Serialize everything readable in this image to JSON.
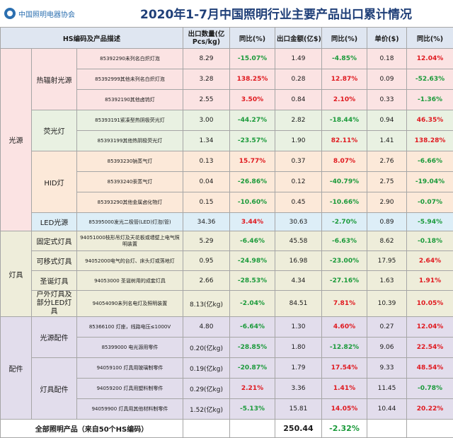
{
  "header": {
    "logo_text": "中国照明电器协会",
    "title": "2020年1-7月中国照明行业主要产品出口累计情况"
  },
  "columns": {
    "hs_desc": "HS编码及产品描述",
    "qty": "出口数量(亿Pcs/kg)",
    "qty_yoy": "同比(%)",
    "amt": "出口金额(亿$)",
    "amt_yoy": "同比(%)",
    "price": "单价($)",
    "price_yoy": "同比(%)"
  },
  "categories": {
    "light_source": "光源",
    "luminaire": "灯具",
    "accessory": "配件"
  },
  "subcats": {
    "incandescent": "热辐射光源",
    "fluorescent": "荧光灯",
    "hid": "HID灯",
    "led": "LED光源",
    "fixed": "固定式灯具",
    "portable": "可移式灯具",
    "christmas": "圣诞灯具",
    "outdoor": "户外灯具及部分LED灯具",
    "ls_parts": "光源配件",
    "lum_parts": "灯具配件"
  },
  "rows": [
    {
      "hs": "85392290未列名白炽灯泡",
      "qty": "8.29",
      "qty_yoy": "-15.07%",
      "amt": "1.49",
      "amt_yoy": "-4.85%",
      "price": "0.18",
      "price_yoy": "12.04%"
    },
    {
      "hs": "85392999其他未列名白炽灯泡",
      "qty": "3.28",
      "qty_yoy": "138.25%",
      "amt": "0.28",
      "amt_yoy": "12.87%",
      "price": "0.09",
      "price_yoy": "-52.63%"
    },
    {
      "hs": "85392190其他卤钨灯",
      "qty": "2.55",
      "qty_yoy": "3.50%",
      "amt": "0.84",
      "amt_yoy": "2.10%",
      "price": "0.33",
      "price_yoy": "-1.36%"
    },
    {
      "hs": "85393191紧凑型热阴极荧光灯",
      "qty": "3.00",
      "qty_yoy": "-44.27%",
      "amt": "2.82",
      "amt_yoy": "-18.44%",
      "price": "0.94",
      "price_yoy": "46.35%"
    },
    {
      "hs": "85393199其他热阴极荧光灯",
      "qty": "1.34",
      "qty_yoy": "-23.57%",
      "amt": "1.90",
      "amt_yoy": "82.11%",
      "price": "1.41",
      "price_yoy": "138.28%"
    },
    {
      "hs": "85393230钠蒸气灯",
      "qty": "0.13",
      "qty_yoy": "15.77%",
      "amt": "0.37",
      "amt_yoy": "8.07%",
      "price": "2.76",
      "price_yoy": "-6.66%"
    },
    {
      "hs": "85393240汞蒸气灯",
      "qty": "0.04",
      "qty_yoy": "-26.86%",
      "amt": "0.12",
      "amt_yoy": "-40.79%",
      "price": "2.75",
      "price_yoy": "-19.04%"
    },
    {
      "hs": "85393290其他金属卤化物灯",
      "qty": "0.15",
      "qty_yoy": "-10.60%",
      "amt": "0.45",
      "amt_yoy": "-10.66%",
      "price": "2.90",
      "price_yoy": "-0.07%"
    },
    {
      "hs": "85395000发光二极管(LED)灯泡(管)",
      "qty": "34.36",
      "qty_yoy": "3.44%",
      "amt": "30.63",
      "amt_yoy": "-2.70%",
      "price": "0.89",
      "price_yoy": "-5.94%"
    },
    {
      "hs": "94051000枝形吊灯及天花板或墙壁上电气照明装置",
      "qty": "5.29",
      "qty_yoy": "-6.46%",
      "amt": "45.58",
      "amt_yoy": "-6.63%",
      "price": "8.62",
      "price_yoy": "-0.18%"
    },
    {
      "hs": "94052000电气的台灯、床头灯或落地灯",
      "qty": "0.95",
      "qty_yoy": "-24.98%",
      "amt": "16.98",
      "amt_yoy": "-23.00%",
      "price": "17.95",
      "price_yoy": "2.64%"
    },
    {
      "hs": "94053000 圣诞树用的成套灯具",
      "qty": "2.66",
      "qty_yoy": "-28.53%",
      "amt": "4.34",
      "amt_yoy": "-27.16%",
      "price": "1.63",
      "price_yoy": "1.91%"
    },
    {
      "hs": "94054090未列名电灯及照明装置",
      "qty": "8.13(亿kg)",
      "qty_yoy": "-2.04%",
      "amt": "84.51",
      "amt_yoy": "7.81%",
      "price": "10.39",
      "price_yoy": "10.05%"
    },
    {
      "hs": "85366100 灯座，线路电压≤1000V",
      "qty": "4.80",
      "qty_yoy": "-6.64%",
      "amt": "1.30",
      "amt_yoy": "4.60%",
      "price": "0.27",
      "price_yoy": "12.04%"
    },
    {
      "hs": "85399000 电光源用零件",
      "qty": "0.20(亿kg)",
      "qty_yoy": "-28.85%",
      "amt": "1.80",
      "amt_yoy": "-12.82%",
      "price": "9.06",
      "price_yoy": "22.54%"
    },
    {
      "hs": "94059100 灯具用玻璃制零件",
      "qty": "0.19(亿kg)",
      "qty_yoy": "-20.87%",
      "amt": "1.79",
      "amt_yoy": "17.54%",
      "price": "9.33",
      "price_yoy": "48.54%"
    },
    {
      "hs": "94059200 灯具用塑料制零件",
      "qty": "0.29(亿kg)",
      "qty_yoy": "2.21%",
      "amt": "3.36",
      "amt_yoy": "1.41%",
      "price": "11.45",
      "price_yoy": "-0.78%"
    },
    {
      "hs": "94059900 灯具用其他材料制零件",
      "qty": "1.52(亿kg)",
      "qty_yoy": "-5.13%",
      "amt": "15.81",
      "amt_yoy": "14.05%",
      "price": "10.44",
      "price_yoy": "20.22%"
    }
  ],
  "total": {
    "label": "全部照明产品（来自50个HS编码）",
    "amt": "250.44",
    "amt_yoy": "-2.32%"
  }
}
